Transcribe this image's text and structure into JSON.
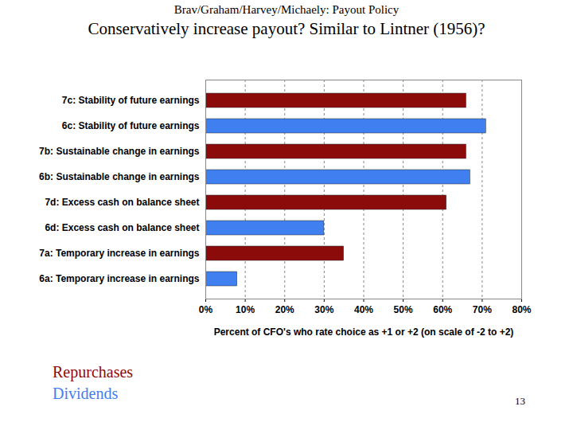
{
  "header": "Brav/Graham/Harvey/Michaely: Payout Policy",
  "page_number": "13",
  "chart_data": {
    "type": "bar",
    "orientation": "horizontal",
    "title": "Conservatively increase payout? Similar to Lintner (1956)?",
    "x_label": "Percent of CFO's who rate choice as +1 or +2 (on scale of -2 to +2)",
    "categories": [
      "7c: Stability of future earnings",
      "6c: Stability of future earnings",
      "7b: Sustainable change in earnings",
      "6b: Sustainable change in earnings",
      "7d: Excess cash on balance sheet",
      "6d: Excess cash on balance sheet",
      "7a: Temporary increase in earnings",
      "6a: Temporary increase in earnings"
    ],
    "series": [
      {
        "name": "Repurchases",
        "color": "#8b0a0a",
        "values": [
          66,
          null,
          66,
          null,
          61,
          null,
          35,
          null
        ]
      },
      {
        "name": "Dividends",
        "color": "#3f7fef",
        "values": [
          null,
          71,
          null,
          67,
          null,
          30,
          null,
          8
        ]
      }
    ],
    "xlim": [
      0,
      80
    ],
    "xticks": [
      {
        "value": 0,
        "label": "0%"
      },
      {
        "value": 10,
        "label": "10%"
      },
      {
        "value": 20,
        "label": "20%"
      },
      {
        "value": 30,
        "label": "30%"
      },
      {
        "value": 40,
        "label": "40%"
      },
      {
        "value": 50,
        "label": "50%"
      },
      {
        "value": 60,
        "label": "60%"
      },
      {
        "value": 70,
        "label": "70%"
      },
      {
        "value": 80,
        "label": "80%"
      }
    ],
    "grid": true,
    "legend": "bottom-left"
  }
}
